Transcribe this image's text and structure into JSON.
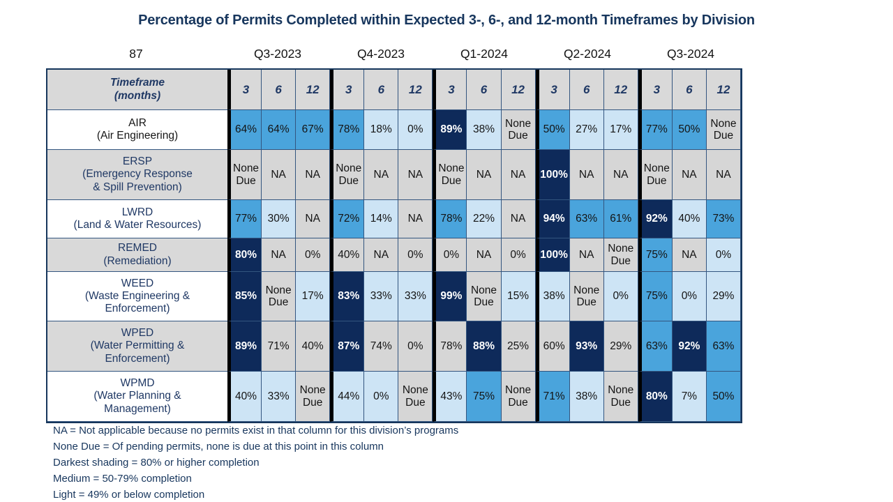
{
  "chart_data": {
    "type": "table",
    "title": "Percentage of Permits Completed within Expected 3-, 6-, and 12-month Timeframes by Division",
    "corner_label": "87",
    "quarters": [
      "Q3-2023",
      "Q4-2023",
      "Q1-2024",
      "Q2-2024",
      "Q3-2024"
    ],
    "timeframes": [
      "3",
      "6",
      "12"
    ],
    "timeframe_header": "Timeframe\n(months)",
    "shade_colors": {
      "dark": "#0e2a5a",
      "medium": "#4aa4dc",
      "light": "#cde4f5",
      "gray": "#d6d6d6"
    },
    "shade_meaning": {
      "dark": "80% or higher completion",
      "medium": "50-79% completion",
      "light": "49% or below completion",
      "gray": "NA / None Due"
    },
    "rows": [
      {
        "division": "AIR\n(Air Engineering)",
        "label_bg": "white",
        "label_color": "black",
        "values": [
          "64%",
          "64%",
          "67%",
          "78%",
          "18%",
          "0%",
          "89%",
          "38%",
          "None Due",
          "50%",
          "27%",
          "17%",
          "77%",
          "50%",
          "None Due"
        ],
        "shades": [
          "medium",
          "medium",
          "medium",
          "medium",
          "light",
          "light",
          "dark",
          "light",
          "gray",
          "medium",
          "light",
          "light",
          "medium",
          "medium",
          "gray"
        ]
      },
      {
        "division": "ERSP\n(Emergency Response\n& Spill Prevention)",
        "label_bg": "gray",
        "label_color": "navy",
        "values": [
          "None Due",
          "NA",
          "NA",
          "None Due",
          "NA",
          "NA",
          "None Due",
          "NA",
          "NA",
          "100%",
          "NA",
          "NA",
          "None Due",
          "NA",
          "NA"
        ],
        "shades": [
          "gray",
          "gray",
          "gray",
          "gray",
          "gray",
          "gray",
          "gray",
          "gray",
          "gray",
          "dark",
          "gray",
          "gray",
          "gray",
          "gray",
          "gray"
        ]
      },
      {
        "division": "LWRD\n(Land & Water Resources)",
        "label_bg": "white",
        "label_color": "navy",
        "values": [
          "77%",
          "30%",
          "NA",
          "72%",
          "14%",
          "NA",
          "78%",
          "22%",
          "NA",
          "94%",
          "63%",
          "61%",
          "92%",
          "40%",
          "73%"
        ],
        "shades": [
          "medium",
          "light",
          "gray",
          "medium",
          "light",
          "gray",
          "medium",
          "light",
          "gray",
          "dark",
          "medium",
          "medium",
          "dark",
          "light",
          "medium"
        ]
      },
      {
        "division": "REMED\n(Remediation)",
        "label_bg": "gray",
        "label_color": "navy",
        "values": [
          "80%",
          "NA",
          "0%",
          "40%",
          "NA",
          "0%",
          "0%",
          "NA",
          "0%",
          "100%",
          "NA",
          "None Due",
          "75%",
          "NA",
          "0%"
        ],
        "shades": [
          "dark",
          "gray",
          "gray",
          "gray",
          "gray",
          "gray",
          "gray",
          "gray",
          "gray",
          "dark",
          "gray",
          "gray",
          "medium",
          "gray",
          "light"
        ]
      },
      {
        "division": "WEED\n(Waste Engineering &\nEnforcement)",
        "label_bg": "white",
        "label_color": "navy",
        "values": [
          "85%",
          "None Due",
          "17%",
          "83%",
          "33%",
          "33%",
          "99%",
          "None Due",
          "15%",
          "38%",
          "None Due",
          "0%",
          "75%",
          "0%",
          "29%"
        ],
        "shades": [
          "dark",
          "gray",
          "light",
          "dark",
          "light",
          "light",
          "dark",
          "gray",
          "light",
          "light",
          "gray",
          "light",
          "medium",
          "light",
          "light"
        ]
      },
      {
        "division": "WPED\n(Water Permitting &\nEnforcement)",
        "label_bg": "gray",
        "label_color": "navy",
        "values": [
          "89%",
          "71%",
          "40%",
          "87%",
          "74%",
          "0%",
          "78%",
          "88%",
          "25%",
          "60%",
          "93%",
          "29%",
          "63%",
          "92%",
          "63%"
        ],
        "shades": [
          "dark",
          "gray",
          "gray",
          "dark",
          "gray",
          "gray",
          "gray",
          "dark",
          "gray",
          "gray",
          "dark",
          "gray",
          "medium",
          "dark",
          "medium"
        ]
      },
      {
        "division": "WPMD\n(Water Planning &\nManagement)",
        "label_bg": "white",
        "label_color": "navy",
        "values": [
          "40%",
          "33%",
          "None Due",
          "44%",
          "0%",
          "None Due",
          "43%",
          "75%",
          "None Due",
          "71%",
          "38%",
          "None Due",
          "80%",
          "7%",
          "50%"
        ],
        "shades": [
          "light",
          "light",
          "gray",
          "light",
          "light",
          "gray",
          "light",
          "medium",
          "gray",
          "medium",
          "light",
          "gray",
          "dark",
          "light",
          "medium"
        ]
      }
    ],
    "notes": [
      "NA = Not applicable because no permits exist in that column for this division’s programs",
      "None Due = Of pending permits, none is due at this point in this column",
      "Darkest shading = 80% or higher completion",
      "Medium = 50-79% completion",
      "Light = 49% or below completion"
    ]
  }
}
